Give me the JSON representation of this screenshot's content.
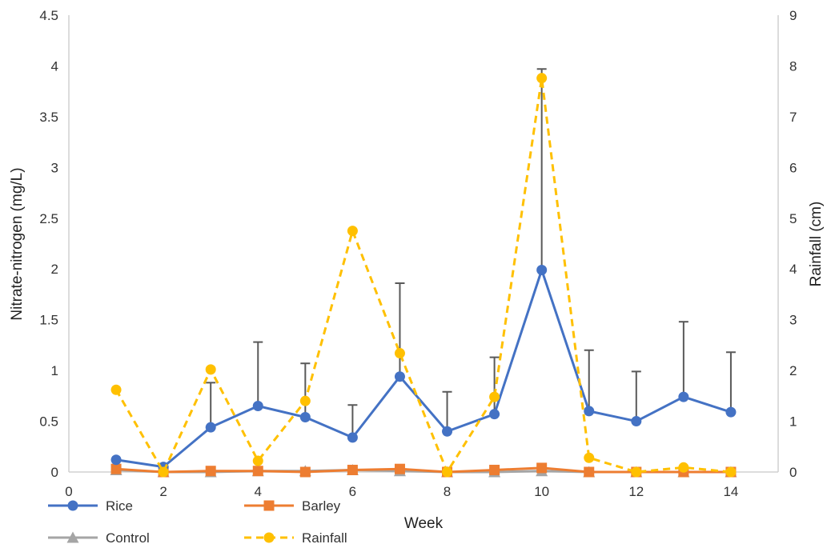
{
  "chart_data": {
    "type": "line",
    "xlabel": "Week",
    "ylabel_left": "Nitrate-nitrogen (mg/L)",
    "ylabel_right": "Rainfall (cm)",
    "xlim": [
      0,
      15
    ],
    "ylim_left": [
      0,
      4.5
    ],
    "ylim_right": [
      0,
      9
    ],
    "xticks": [
      0,
      2,
      4,
      6,
      8,
      10,
      12,
      14
    ],
    "yticks_left": [
      0,
      0.5,
      1,
      1.5,
      2,
      2.5,
      3,
      3.5,
      4,
      4.5
    ],
    "yticks_right": [
      0,
      1,
      2,
      3,
      4,
      5,
      6,
      7,
      8,
      9
    ],
    "grid": false,
    "legend_position": "bottom-left",
    "x": [
      1,
      2,
      3,
      4,
      5,
      6,
      7,
      8,
      9,
      10,
      11,
      12,
      13,
      14
    ],
    "series": [
      {
        "name": "Rice",
        "axis": "left",
        "color": "#4472C4",
        "marker": "circle",
        "style": "solid",
        "values": [
          0.12,
          0.05,
          0.44,
          0.65,
          0.54,
          0.34,
          0.94,
          0.4,
          0.57,
          1.99,
          0.6,
          0.5,
          0.74,
          0.59
        ],
        "error_upper": [
          0.12,
          0.05,
          0.88,
          1.28,
          1.07,
          0.66,
          1.86,
          0.79,
          1.13,
          3.97,
          1.2,
          0.99,
          1.48,
          1.18
        ]
      },
      {
        "name": "Barley",
        "axis": "left",
        "color": "#ED7D31",
        "marker": "square",
        "style": "solid",
        "values": [
          0.03,
          0.0,
          0.01,
          0.01,
          0.0,
          0.02,
          0.03,
          0.0,
          0.02,
          0.04,
          0.0,
          0.0,
          0.0,
          0.0
        ]
      },
      {
        "name": "Control",
        "axis": "left",
        "color": "#A5A5A5",
        "marker": "triangle",
        "style": "solid",
        "values": [
          0.02,
          0.0,
          0.0,
          0.01,
          0.01,
          0.02,
          0.01,
          0.0,
          0.0,
          0.01,
          0.0,
          0.0,
          0.0,
          0.0
        ]
      },
      {
        "name": "Rainfall",
        "axis": "right",
        "color": "#FFC000",
        "marker": "circle",
        "style": "dashed",
        "values": [
          1.62,
          0.0,
          2.02,
          0.22,
          1.4,
          4.75,
          2.34,
          0.0,
          1.48,
          7.76,
          0.28,
          0.0,
          0.09,
          0.0
        ]
      }
    ]
  }
}
